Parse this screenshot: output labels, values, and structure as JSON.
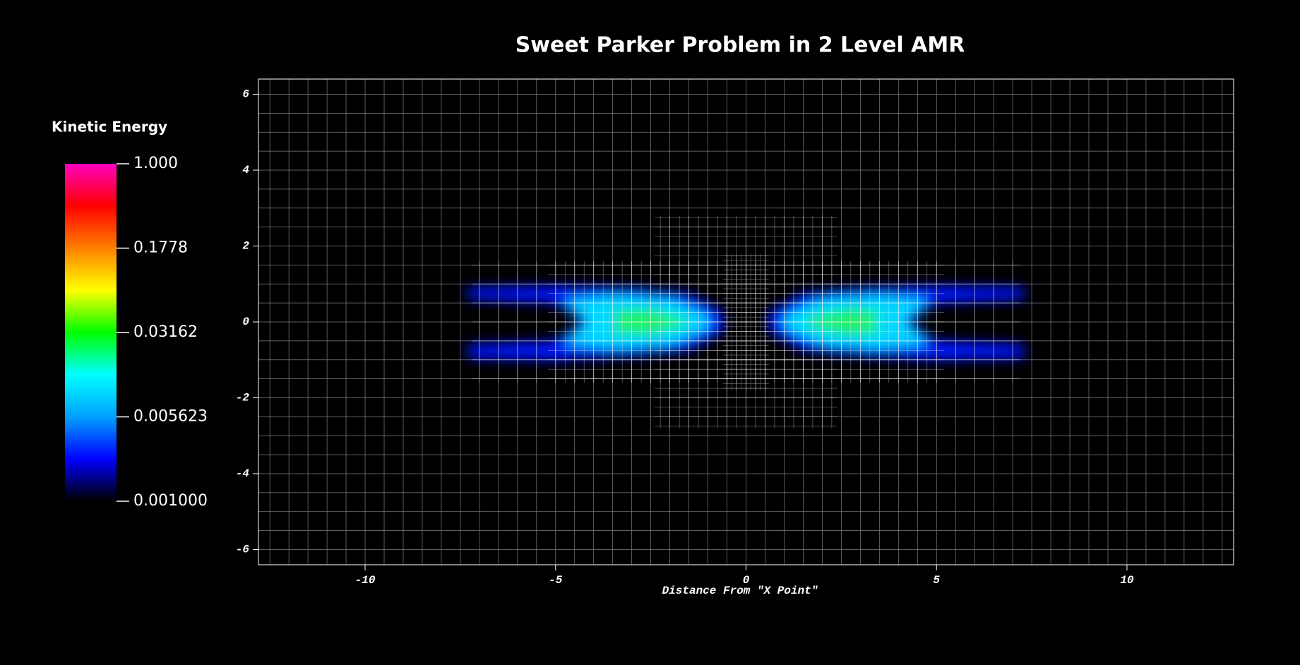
{
  "chart_data": {
    "type": "field",
    "title": "Sweet Parker Problem in 2 Level AMR",
    "xlabel": "Distance From \"X Point\"",
    "xlim": [
      -12.8,
      12.8
    ],
    "ylim": [
      -6.4,
      6.4
    ],
    "xticks": [
      -10,
      -5,
      0,
      5,
      10
    ],
    "yticks": [
      -6,
      -4,
      -2,
      0,
      2,
      4,
      6
    ],
    "colorbar": {
      "title": "Kinetic Energy",
      "log": true,
      "lim": [
        0.001,
        1
      ],
      "ticks": [
        {
          "value": 1,
          "label": "1.000"
        },
        0.1778,
        0.03162,
        0.005623,
        {
          "value": 0.001,
          "label": "0.001000"
        }
      ],
      "colormap": [
        "#000000",
        "#0000ff",
        "#00a0ff",
        "#00ffff",
        "#00ff00",
        "#ffff00",
        "#ff8000",
        "#ff0000",
        "#ff00c0"
      ]
    }
  }
}
